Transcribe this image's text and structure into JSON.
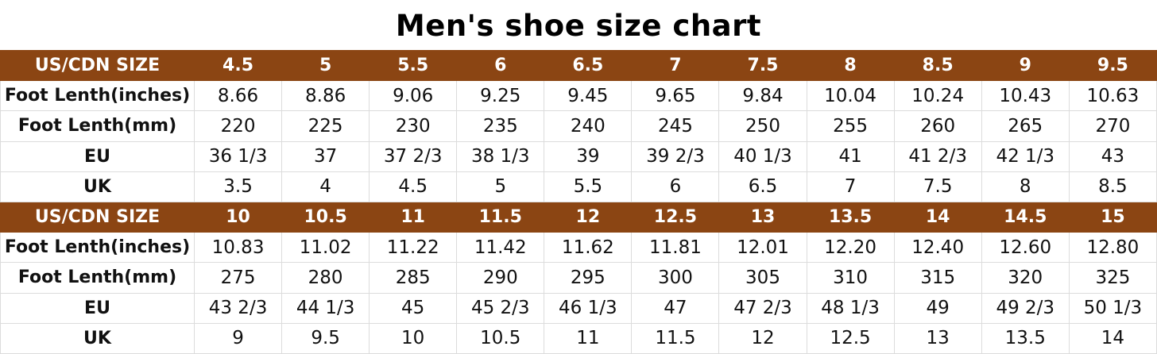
{
  "title": "Men's shoe size chart",
  "colors": {
    "header_bg": "#8B4513",
    "header_text": "#ffffff"
  },
  "blocks": [
    {
      "rows": [
        {
          "label": "US/CDN SIZE",
          "header": true,
          "values": [
            "4.5",
            "5",
            "5.5",
            "6",
            "6.5",
            "7",
            "7.5",
            "8",
            "8.5",
            "9",
            "9.5"
          ]
        },
        {
          "label": "Foot Lenth(inches)",
          "values": [
            "8.66",
            "8.86",
            "9.06",
            "9.25",
            "9.45",
            "9.65",
            "9.84",
            "10.04",
            "10.24",
            "10.43",
            "10.63"
          ]
        },
        {
          "label": "Foot Lenth(mm)",
          "values": [
            "220",
            "225",
            "230",
            "235",
            "240",
            "245",
            "250",
            "255",
            "260",
            "265",
            "270"
          ]
        },
        {
          "label": "EU",
          "values": [
            "36 1/3",
            "37",
            "37 2/3",
            "38 1/3",
            "39",
            "39 2/3",
            "40 1/3",
            "41",
            "41 2/3",
            "42 1/3",
            "43"
          ]
        },
        {
          "label": "UK",
          "values": [
            "3.5",
            "4",
            "4.5",
            "5",
            "5.5",
            "6",
            "6.5",
            "7",
            "7.5",
            "8",
            "8.5"
          ]
        }
      ]
    },
    {
      "rows": [
        {
          "label": "US/CDN SIZE",
          "header": true,
          "values": [
            "10",
            "10.5",
            "11",
            "11.5",
            "12",
            "12.5",
            "13",
            "13.5",
            "14",
            "14.5",
            "15"
          ]
        },
        {
          "label": "Foot Lenth(inches)",
          "values": [
            "10.83",
            "11.02",
            "11.22",
            "11.42",
            "11.62",
            "11.81",
            "12.01",
            "12.20",
            "12.40",
            "12.60",
            "12.80"
          ]
        },
        {
          "label": "Foot Lenth(mm)",
          "values": [
            "275",
            "280",
            "285",
            "290",
            "295",
            "300",
            "305",
            "310",
            "315",
            "320",
            "325"
          ]
        },
        {
          "label": "EU",
          "values": [
            "43 2/3",
            "44 1/3",
            "45",
            "45 2/3",
            "46 1/3",
            "47",
            "47 2/3",
            "48 1/3",
            "49",
            "49 2/3",
            "50 1/3"
          ]
        },
        {
          "label": "UK",
          "values": [
            "9",
            "9.5",
            "10",
            "10.5",
            "11",
            "11.5",
            "12",
            "12.5",
            "13",
            "13.5",
            "14"
          ]
        }
      ]
    }
  ]
}
